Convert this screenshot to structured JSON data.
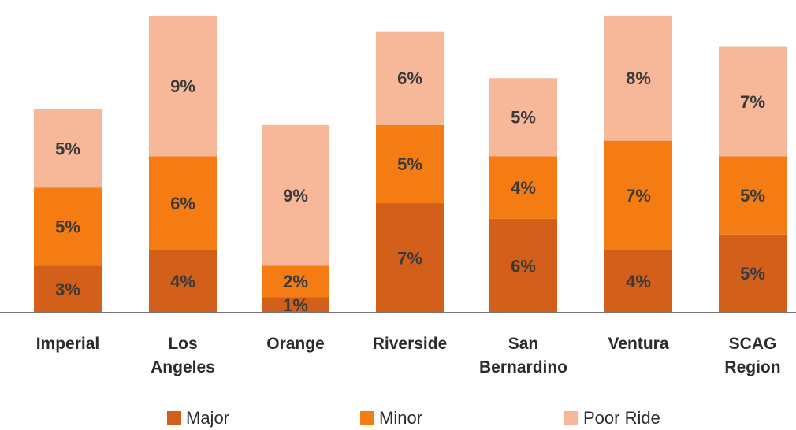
{
  "chart_data": {
    "type": "stacked_bar",
    "categories": [
      "Imperial",
      "Los Angeles",
      "Orange",
      "Riverside",
      "San Bernardino",
      "Ventura",
      "SCAG Region"
    ],
    "series": [
      {
        "name": "Major",
        "color": "#d2601a",
        "values": [
          3,
          4,
          1,
          7,
          6,
          4,
          5
        ],
        "value_labels": [
          "3%",
          "4%",
          "1%",
          "7%",
          "6%",
          "4%",
          "5%"
        ]
      },
      {
        "name": "Minor",
        "color": "#f57c12",
        "values": [
          5,
          6,
          2,
          5,
          4,
          7,
          5
        ],
        "value_labels": [
          "5%",
          "6%",
          "2%",
          "5%",
          "4%",
          "7%",
          "5%"
        ]
      },
      {
        "name": "Poor Ride",
        "color": "#f7b89a",
        "values": [
          5,
          9,
          9,
          6,
          5,
          8,
          7
        ],
        "value_labels": [
          "5%",
          "9%",
          "9%",
          "6%",
          "5%",
          "8%",
          "7%"
        ]
      }
    ],
    "ylim": [
      0,
      20
    ],
    "legend": "bottom"
  }
}
